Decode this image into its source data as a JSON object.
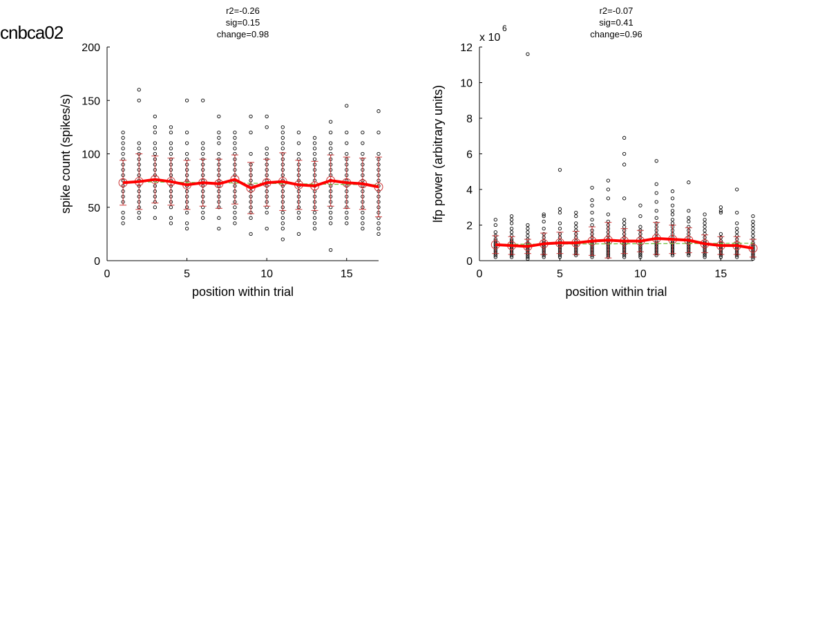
{
  "figure": {
    "title": "cnbca02"
  },
  "chart_data": [
    {
      "type": "scatter",
      "title_lines": [
        "r2=-0.26",
        "sig=0.15",
        "change=0.98"
      ],
      "xlabel": "position within trial",
      "ylabel": "spike count (spikes/s)",
      "xlim": [
        0,
        17
      ],
      "ylim": [
        0,
        200
      ],
      "xticks": [
        0,
        5,
        10,
        15
      ],
      "yticks": [
        0,
        50,
        100,
        150,
        200
      ],
      "exponent_label": "",
      "colors": {
        "points": "#000000",
        "errorbars": "#cc3333",
        "mean_line": "#ff0000",
        "fit_line": "#66bb33"
      },
      "points": [
        {
          "x": 1,
          "y": [
            35,
            40,
            45,
            55,
            60,
            65,
            70,
            75,
            80,
            85,
            90,
            95,
            100,
            105,
            110,
            115,
            120
          ]
        },
        {
          "x": 2,
          "y": [
            40,
            45,
            50,
            55,
            60,
            65,
            70,
            75,
            80,
            85,
            90,
            95,
            100,
            105,
            110,
            150,
            160
          ]
        },
        {
          "x": 3,
          "y": [
            40,
            50,
            55,
            60,
            65,
            70,
            75,
            80,
            85,
            90,
            95,
            100,
            105,
            110,
            120,
            125,
            135
          ]
        },
        {
          "x": 4,
          "y": [
            35,
            40,
            50,
            55,
            60,
            65,
            70,
            75,
            80,
            85,
            90,
            95,
            100,
            105,
            110,
            120,
            125
          ]
        },
        {
          "x": 5,
          "y": [
            30,
            35,
            45,
            50,
            55,
            60,
            65,
            70,
            75,
            80,
            85,
            90,
            95,
            100,
            110,
            120,
            150
          ]
        },
        {
          "x": 6,
          "y": [
            40,
            45,
            50,
            55,
            60,
            65,
            70,
            75,
            80,
            85,
            90,
            95,
            100,
            105,
            110,
            150
          ]
        },
        {
          "x": 7,
          "y": [
            30,
            40,
            50,
            55,
            60,
            65,
            70,
            75,
            80,
            85,
            90,
            95,
            100,
            110,
            115,
            120,
            135
          ]
        },
        {
          "x": 8,
          "y": [
            35,
            40,
            45,
            50,
            55,
            60,
            65,
            70,
            75,
            80,
            85,
            90,
            95,
            100,
            105,
            110,
            115,
            120
          ]
        },
        {
          "x": 9,
          "y": [
            25,
            40,
            45,
            50,
            55,
            60,
            65,
            70,
            75,
            80,
            85,
            90,
            100,
            120,
            135
          ]
        },
        {
          "x": 10,
          "y": [
            30,
            45,
            50,
            55,
            60,
            65,
            70,
            75,
            80,
            85,
            90,
            95,
            100,
            105,
            125,
            135
          ]
        },
        {
          "x": 11,
          "y": [
            20,
            30,
            35,
            40,
            45,
            50,
            55,
            60,
            65,
            70,
            75,
            80,
            85,
            90,
            95,
            100,
            105,
            110,
            115,
            120,
            125
          ]
        },
        {
          "x": 12,
          "y": [
            25,
            40,
            45,
            50,
            55,
            60,
            65,
            70,
            75,
            80,
            85,
            90,
            95,
            100,
            110,
            120
          ]
        },
        {
          "x": 13,
          "y": [
            30,
            35,
            40,
            45,
            50,
            55,
            60,
            65,
            70,
            75,
            80,
            85,
            90,
            95,
            100,
            105,
            110,
            115
          ]
        },
        {
          "x": 14,
          "y": [
            10,
            35,
            40,
            45,
            50,
            55,
            60,
            65,
            70,
            75,
            80,
            85,
            90,
            95,
            100,
            105,
            110,
            120,
            130
          ]
        },
        {
          "x": 15,
          "y": [
            35,
            40,
            45,
            50,
            55,
            60,
            65,
            70,
            75,
            80,
            85,
            90,
            95,
            100,
            110,
            120,
            145
          ]
        },
        {
          "x": 16,
          "y": [
            30,
            35,
            40,
            45,
            50,
            55,
            60,
            65,
            70,
            75,
            80,
            85,
            90,
            95,
            100,
            110,
            120
          ]
        },
        {
          "x": 17,
          "y": [
            25,
            30,
            35,
            40,
            45,
            50,
            55,
            60,
            65,
            70,
            75,
            80,
            85,
            90,
            95,
            100,
            120,
            140
          ]
        }
      ],
      "mean": [
        73,
        74,
        76,
        74,
        71,
        73,
        72,
        76,
        68,
        73,
        74,
        71,
        70,
        75,
        73,
        72,
        69
      ],
      "sd": [
        21,
        26,
        22,
        22,
        23,
        22,
        23,
        23,
        24,
        22,
        27,
        23,
        23,
        24,
        24,
        24,
        28
      ],
      "fit": [
        74,
        71
      ]
    },
    {
      "type": "scatter",
      "title_lines": [
        "r2=-0.07",
        "sig=0.41",
        "change=0.96"
      ],
      "xlabel": "position within trial",
      "ylabel": "lfp power (arbitrary units)",
      "xlim": [
        0,
        17
      ],
      "ylim": [
        0,
        12
      ],
      "xticks": [
        0,
        5,
        10,
        15
      ],
      "yticks": [
        0,
        2,
        4,
        6,
        8,
        10,
        12
      ],
      "exponent_label": "x 10",
      "exponent_power": "6",
      "colors": {
        "points": "#000000",
        "errorbars": "#cc3333",
        "mean_line": "#ff0000",
        "fit_line": "#66bb33"
      },
      "points": [
        {
          "x": 1,
          "y": [
            0.2,
            0.3,
            0.4,
            0.5,
            0.6,
            0.7,
            0.8,
            0.9,
            1.0,
            1.1,
            1.2,
            1.4,
            1.6,
            2.0,
            2.3
          ]
        },
        {
          "x": 2,
          "y": [
            0.2,
            0.3,
            0.4,
            0.5,
            0.6,
            0.7,
            0.8,
            0.9,
            1.0,
            1.1,
            1.2,
            1.4,
            1.6,
            1.8,
            2.1,
            2.3,
            2.5
          ]
        },
        {
          "x": 3,
          "y": [
            0.1,
            0.2,
            0.3,
            0.4,
            0.5,
            0.6,
            0.7,
            0.8,
            0.9,
            1.0,
            1.2,
            1.4,
            1.6,
            1.8,
            2.0,
            11.6
          ]
        },
        {
          "x": 4,
          "y": [
            0.2,
            0.3,
            0.4,
            0.5,
            0.6,
            0.7,
            0.8,
            0.9,
            1.0,
            1.1,
            1.3,
            1.5,
            1.8,
            2.2,
            2.5,
            2.6
          ]
        },
        {
          "x": 5,
          "y": [
            0.2,
            0.3,
            0.4,
            0.5,
            0.6,
            0.7,
            0.8,
            0.9,
            1.0,
            1.1,
            1.3,
            1.5,
            1.8,
            2.1,
            2.7,
            2.9,
            5.1
          ]
        },
        {
          "x": 6,
          "y": [
            0.3,
            0.4,
            0.5,
            0.6,
            0.7,
            0.8,
            0.9,
            1.0,
            1.1,
            1.3,
            1.5,
            1.7,
            1.9,
            2.1,
            2.5,
            2.7
          ]
        },
        {
          "x": 7,
          "y": [
            0.2,
            0.3,
            0.4,
            0.5,
            0.6,
            0.7,
            0.8,
            0.9,
            1.0,
            1.1,
            1.3,
            1.5,
            1.7,
            2.0,
            2.3,
            2.7,
            3.1,
            3.4,
            4.1
          ]
        },
        {
          "x": 8,
          "y": [
            0.2,
            0.3,
            0.4,
            0.5,
            0.6,
            0.7,
            0.8,
            0.9,
            1.0,
            1.1,
            1.2,
            1.4,
            1.6,
            1.8,
            2.0,
            2.2,
            2.6,
            3.5,
            4.0,
            4.5
          ]
        },
        {
          "x": 9,
          "y": [
            0.2,
            0.3,
            0.4,
            0.5,
            0.6,
            0.7,
            0.8,
            0.9,
            1.0,
            1.1,
            1.3,
            1.5,
            1.7,
            1.9,
            2.1,
            2.3,
            3.5,
            5.4,
            6.0,
            6.9
          ]
        },
        {
          "x": 10,
          "y": [
            0.2,
            0.3,
            0.4,
            0.5,
            0.6,
            0.7,
            0.8,
            0.9,
            1.0,
            1.1,
            1.3,
            1.5,
            1.7,
            1.9,
            2.5,
            3.1
          ]
        },
        {
          "x": 11,
          "y": [
            0.3,
            0.4,
            0.5,
            0.6,
            0.7,
            0.8,
            0.9,
            1.0,
            1.1,
            1.3,
            1.5,
            1.7,
            1.9,
            2.1,
            2.4,
            2.8,
            3.3,
            3.8,
            4.3,
            5.6
          ]
        },
        {
          "x": 12,
          "y": [
            0.3,
            0.4,
            0.5,
            0.6,
            0.7,
            0.8,
            0.9,
            1.0,
            1.1,
            1.3,
            1.5,
            1.7,
            1.9,
            2.1,
            2.3,
            2.6,
            2.8,
            3.1,
            3.5,
            3.9
          ]
        },
        {
          "x": 13,
          "y": [
            0.3,
            0.4,
            0.5,
            0.6,
            0.7,
            0.8,
            0.9,
            1.0,
            1.1,
            1.3,
            1.5,
            1.7,
            1.9,
            2.2,
            2.4,
            2.8,
            4.4
          ]
        },
        {
          "x": 14,
          "y": [
            0.2,
            0.3,
            0.4,
            0.5,
            0.6,
            0.7,
            0.8,
            0.9,
            1.0,
            1.1,
            1.3,
            1.5,
            1.7,
            1.9,
            2.1,
            2.3,
            2.6
          ]
        },
        {
          "x": 15,
          "y": [
            0.2,
            0.3,
            0.4,
            0.5,
            0.6,
            0.7,
            0.8,
            0.9,
            1.0,
            1.1,
            1.3,
            1.5,
            2.7,
            2.8,
            3.0
          ]
        },
        {
          "x": 16,
          "y": [
            0.2,
            0.3,
            0.4,
            0.5,
            0.6,
            0.7,
            0.8,
            0.9,
            1.0,
            1.2,
            1.4,
            1.6,
            1.8,
            2.1,
            2.7,
            4.0
          ]
        },
        {
          "x": 17,
          "y": [
            0.1,
            0.2,
            0.3,
            0.4,
            0.5,
            0.6,
            0.7,
            0.8,
            0.9,
            1.0,
            1.2,
            1.4,
            1.6,
            1.8,
            2.0,
            2.2,
            2.5
          ]
        }
      ],
      "mean": [
        0.9,
        0.85,
        0.8,
        0.95,
        1.0,
        1.0,
        1.1,
        1.15,
        1.1,
        1.1,
        1.25,
        1.2,
        1.15,
        0.95,
        0.85,
        0.85,
        0.7
      ],
      "sd": [
        0.5,
        0.5,
        0.4,
        0.6,
        0.6,
        0.65,
        0.8,
        1.0,
        0.7,
        0.6,
        0.9,
        0.8,
        0.7,
        0.5,
        0.5,
        0.5,
        0.5
      ],
      "fit": [
        0.92,
        0.98
      ]
    }
  ]
}
